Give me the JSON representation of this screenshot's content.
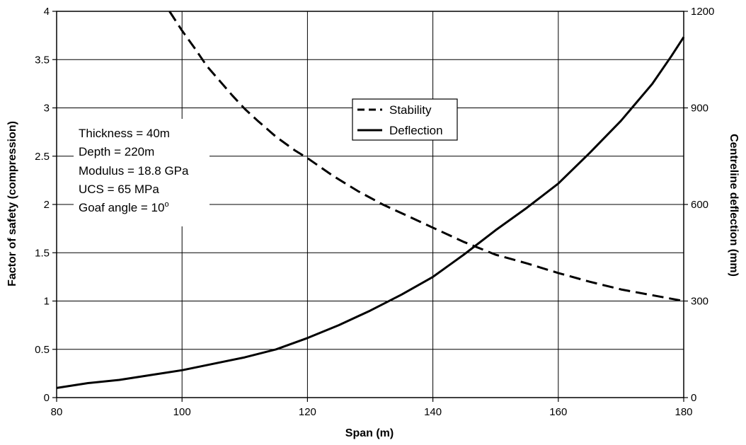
{
  "chart_data": {
    "type": "line",
    "xlabel": "Span (m)",
    "ylabel": "Factor of safety (compression)",
    "y2label": "Centreline deflection (mm)",
    "xlim": [
      80,
      180
    ],
    "ylim": [
      0,
      4
    ],
    "y2lim": [
      0,
      1200
    ],
    "x_ticks": [
      "80",
      "100",
      "120",
      "140",
      "160",
      "180"
    ],
    "y_ticks": [
      "0",
      "0.5",
      "1",
      "1.5",
      "2",
      "2.5",
      "3",
      "3.5",
      "4"
    ],
    "y2_ticks": [
      "0",
      "300",
      "600",
      "900",
      "1200"
    ],
    "grid": true,
    "legend_position": "top-center",
    "annotation_lines": [
      "Thickness = 40m",
      "Depth = 220m",
      "Modulus = 18.8 GPa",
      "UCS = 65 MPa",
      "Goaf angle = 10"
    ],
    "annotation_superscript": "o",
    "series": [
      {
        "name": "Stability",
        "axis": "left",
        "style": "dashed",
        "color": "#000000",
        "x": [
          98,
          100,
          102,
          104,
          106,
          108,
          110,
          112,
          115,
          118,
          120,
          124,
          128,
          132,
          136,
          140,
          145,
          150,
          155,
          160,
          165,
          170,
          175,
          180
        ],
        "y": [
          4.0,
          3.8,
          3.62,
          3.43,
          3.28,
          3.13,
          2.99,
          2.87,
          2.7,
          2.56,
          2.48,
          2.3,
          2.14,
          2.0,
          1.88,
          1.76,
          1.61,
          1.48,
          1.39,
          1.29,
          1.2,
          1.12,
          1.06,
          1.0
        ]
      },
      {
        "name": "Deflection",
        "axis": "right",
        "style": "solid",
        "color": "#000000",
        "x": [
          80,
          85,
          90,
          95,
          100,
          105,
          110,
          115,
          120,
          125,
          130,
          135,
          140,
          145,
          150,
          155,
          160,
          165,
          170,
          175,
          178,
          180
        ],
        "y": [
          30,
          45,
          55,
          70,
          85,
          105,
          125,
          150,
          185,
          225,
          270,
          320,
          375,
          445,
          520,
          590,
          665,
          760,
          860,
          975,
          1060,
          1120
        ]
      }
    ]
  }
}
